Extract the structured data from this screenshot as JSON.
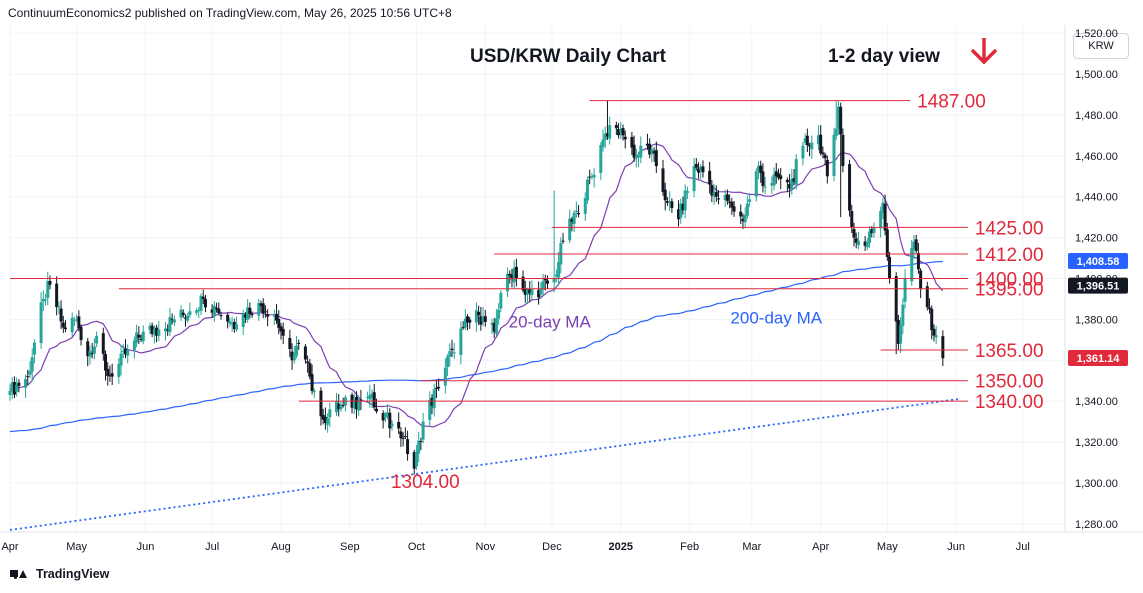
{
  "header": {
    "published": "ContinuumEconomics2 published on TradingView.com, May 26, 2025 10:56 UTC+8"
  },
  "symbol_box": "KRW",
  "footer": {
    "brand": "TradingView"
  },
  "colors": {
    "up": "#26a69a",
    "down": "#131722",
    "level": "#e0293b",
    "ma20": "#7b3fb3",
    "ma200": "#2962ff",
    "trend": "#2962ff",
    "badge_last": "#e0293b",
    "badge_ma200": "#2962ff",
    "badge_ma20": "#131722"
  },
  "chart_data": {
    "type": "candlestick",
    "title": "USD/KRW Daily Chart",
    "view_label": "1-2 day view",
    "view_direction": "down",
    "x_tick_labels": [
      "Apr",
      "May",
      "Jun",
      "Jul",
      "Aug",
      "Sep",
      "Oct",
      "Nov",
      "Dec",
      "2025",
      "Feb",
      "Mar",
      "Apr",
      "May",
      "Jun",
      "Jul"
    ],
    "x_range": [
      "2024-04-01",
      "2025-07-20"
    ],
    "y_tick_labels": [
      "1,520.00",
      "1,500.00",
      "1,480.00",
      "1,460.00",
      "1,440.00",
      "1,420.00",
      "1,400.00",
      "1,380.00",
      "1,360.00",
      "1,340.00",
      "1,320.00",
      "1,300.00",
      "1,280.00"
    ],
    "ylim": [
      1276,
      1524
    ],
    "levels": [
      {
        "label": "1487.00",
        "value": 1487.0,
        "from": "2024-12-18",
        "to": "2025-04-30"
      },
      {
        "label": "1425.00",
        "value": 1425.0,
        "from": "2024-12-01",
        "to": "2025-05-26"
      },
      {
        "label": "1412.00",
        "value": 1412.0,
        "from": "2024-11-05",
        "to": "2025-05-26"
      },
      {
        "label": "1400.00",
        "value": 1400.0,
        "from": "2024-04-01",
        "to": "2025-05-26"
      },
      {
        "label": "1395.00",
        "value": 1395.0,
        "from": "2024-05-20",
        "to": "2025-05-26"
      },
      {
        "label": "1365.00",
        "value": 1365.0,
        "from": "2025-04-28",
        "to": "2025-05-26"
      },
      {
        "label": "1350.00",
        "value": 1350.0,
        "from": "2024-10-03",
        "to": "2025-05-26"
      },
      {
        "label": "1340.00",
        "value": 1340.0,
        "from": "2024-08-09",
        "to": "2025-05-26"
      },
      {
        "label": "1304.00",
        "value": 1304.0,
        "from": "",
        "to": "",
        "annotation_only": true
      }
    ],
    "annotations": [
      {
        "text": "20-day MA",
        "color": "ma20"
      },
      {
        "text": "200-day MA",
        "color": "ma200"
      }
    ],
    "price_badges": [
      {
        "value": "1,408.58",
        "series": "200-day MA"
      },
      {
        "value": "1,396.51",
        "series": "20-day MA"
      },
      {
        "value": "1,361.14",
        "series": "last"
      }
    ],
    "trendline": {
      "style": "dotted",
      "from": [
        "2024-04-01",
        1277.0
      ],
      "to": [
        "2025-05-26",
        1340.0
      ]
    },
    "close_path": [
      [
        "2024-04-01",
        1345
      ],
      [
        "2024-04-09",
        1352
      ],
      [
        "2024-04-16",
        1390
      ],
      [
        "2024-04-19",
        1397
      ],
      [
        "2024-04-25",
        1376
      ],
      [
        "2024-05-01",
        1380
      ],
      [
        "2024-05-06",
        1362
      ],
      [
        "2024-05-10",
        1372
      ],
      [
        "2024-05-14",
        1355
      ],
      [
        "2024-05-17",
        1352
      ],
      [
        "2024-05-24",
        1365
      ],
      [
        "2024-05-31",
        1374
      ],
      [
        "2024-06-07",
        1375
      ],
      [
        "2024-06-14",
        1380
      ],
      [
        "2024-06-21",
        1384
      ],
      [
        "2024-06-27",
        1390
      ],
      [
        "2024-07-03",
        1385
      ],
      [
        "2024-07-10",
        1378
      ],
      [
        "2024-07-15",
        1383
      ],
      [
        "2024-07-22",
        1388
      ],
      [
        "2024-07-29",
        1382
      ],
      [
        "2024-08-02",
        1372
      ],
      [
        "2024-08-06",
        1360
      ],
      [
        "2024-08-09",
        1368
      ],
      [
        "2024-08-14",
        1352
      ],
      [
        "2024-08-20",
        1331
      ],
      [
        "2024-08-23",
        1336
      ],
      [
        "2024-08-29",
        1338
      ],
      [
        "2024-09-05",
        1340
      ],
      [
        "2024-09-10",
        1343
      ],
      [
        "2024-09-13",
        1335
      ],
      [
        "2024-09-20",
        1329
      ],
      [
        "2024-09-25",
        1322
      ],
      [
        "2024-09-30",
        1307
      ],
      [
        "2024-10-04",
        1330
      ],
      [
        "2024-10-10",
        1346
      ],
      [
        "2024-10-17",
        1365
      ],
      [
        "2024-10-22",
        1376
      ],
      [
        "2024-10-29",
        1382
      ],
      [
        "2024-11-05",
        1374
      ],
      [
        "2024-11-08",
        1393
      ],
      [
        "2024-11-14",
        1405
      ],
      [
        "2024-11-19",
        1392
      ],
      [
        "2024-11-26",
        1395
      ],
      [
        "2024-12-02",
        1400
      ],
      [
        "2024-12-06",
        1418
      ],
      [
        "2024-12-12",
        1433
      ],
      [
        "2024-12-19",
        1450
      ],
      [
        "2024-12-24",
        1468
      ],
      [
        "2024-12-27",
        1475
      ],
      [
        "2025-01-02",
        1470
      ],
      [
        "2025-01-08",
        1460
      ],
      [
        "2025-01-13",
        1465
      ],
      [
        "2025-01-17",
        1455
      ],
      [
        "2025-01-22",
        1437
      ],
      [
        "2025-01-27",
        1429
      ],
      [
        "2025-02-03",
        1455
      ],
      [
        "2025-02-07",
        1452
      ],
      [
        "2025-02-13",
        1440
      ],
      [
        "2025-02-19",
        1437
      ],
      [
        "2025-02-25",
        1428
      ],
      [
        "2025-03-04",
        1455
      ],
      [
        "2025-03-07",
        1445
      ],
      [
        "2025-03-12",
        1450
      ],
      [
        "2025-03-18",
        1444
      ],
      [
        "2025-03-24",
        1465
      ],
      [
        "2025-03-31",
        1470
      ],
      [
        "2025-04-04",
        1450
      ],
      [
        "2025-04-09",
        1484
      ],
      [
        "2025-04-11",
        1455
      ],
      [
        "2025-04-16",
        1420
      ],
      [
        "2025-04-21",
        1416
      ],
      [
        "2025-04-25",
        1425
      ],
      [
        "2025-04-29",
        1437
      ],
      [
        "2025-05-02",
        1400
      ],
      [
        "2025-05-06",
        1368
      ],
      [
        "2025-05-09",
        1400
      ],
      [
        "2025-05-13",
        1418
      ],
      [
        "2025-05-16",
        1395
      ],
      [
        "2025-05-20",
        1385
      ],
      [
        "2025-05-22",
        1372
      ],
      [
        "2025-05-26",
        1361
      ]
    ]
  }
}
